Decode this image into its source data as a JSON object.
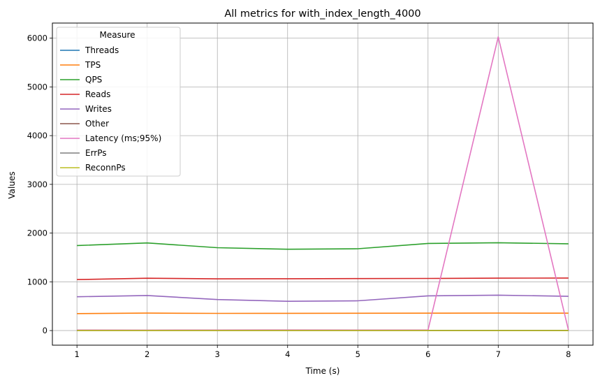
{
  "chart_data": {
    "type": "line",
    "title": "All metrics for with_index_length_4000",
    "xlabel": "Time (s)",
    "ylabel": "Values",
    "x": [
      1,
      2,
      3,
      4,
      5,
      6,
      7,
      8
    ],
    "xticks": [
      1,
      2,
      3,
      4,
      5,
      6,
      7,
      8
    ],
    "yticks": [
      0,
      1000,
      2000,
      3000,
      4000,
      5000,
      6000
    ],
    "xlim": [
      0.65,
      8.35
    ],
    "ylim": [
      -300,
      6310
    ],
    "grid": true,
    "legend": {
      "title": "Measure",
      "placement": "upper-left"
    },
    "series": [
      {
        "name": "Threads",
        "color": "#1f77b4",
        "values": [
          4,
          4,
          4,
          4,
          4,
          4,
          4,
          4
        ]
      },
      {
        "name": "TPS",
        "color": "#ff7f0e",
        "values": [
          348,
          358,
          352,
          354,
          355,
          356,
          358,
          357
        ]
      },
      {
        "name": "QPS",
        "color": "#2ca02c",
        "values": [
          1745,
          1797,
          1700,
          1668,
          1678,
          1787,
          1802,
          1780
        ]
      },
      {
        "name": "Reads",
        "color": "#d62728",
        "values": [
          1047,
          1073,
          1060,
          1063,
          1066,
          1070,
          1075,
          1078
        ]
      },
      {
        "name": "Writes",
        "color": "#9467bd",
        "values": [
          693,
          720,
          636,
          600,
          610,
          712,
          727,
          702
        ]
      },
      {
        "name": "Other",
        "color": "#8c564b",
        "values": [
          0,
          0,
          0,
          0,
          0,
          0,
          0,
          0
        ]
      },
      {
        "name": "Latency (ms;95%)",
        "color": "#e377c2",
        "values": [
          11,
          10,
          11,
          12,
          11,
          12,
          6026,
          11
        ]
      },
      {
        "name": "ErrPs",
        "color": "#7f7f7f",
        "values": [
          0,
          0,
          0,
          0,
          0,
          0,
          0,
          0
        ]
      },
      {
        "name": "ReconnPs",
        "color": "#bcbd22",
        "values": [
          0,
          0,
          0,
          0,
          0,
          0,
          0,
          0
        ]
      }
    ]
  }
}
